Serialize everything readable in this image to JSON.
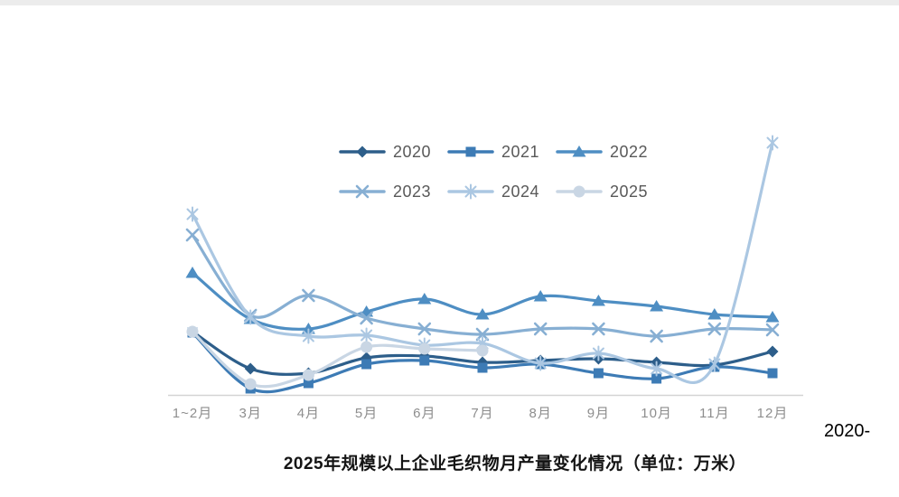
{
  "caption": {
    "line1_right": "2020-",
    "line2": "2025年规模以上企业毛织物月产量变化情况（单位：万米）"
  },
  "chart_data": {
    "type": "line",
    "title": "2020-2025年规模以上企业毛织物月产量变化情况（单位：万米）",
    "categories": [
      "1~2月",
      "3月",
      "4月",
      "5月",
      "6月",
      "7月",
      "8月",
      "9月",
      "10月",
      "11月",
      "12月"
    ],
    "series": [
      {
        "name": "2020",
        "marker": "diamond",
        "color": "#2d5e8a",
        "values": [
          70,
          29,
          24,
          41,
          43,
          36,
          38,
          40,
          36,
          33,
          48
        ]
      },
      {
        "name": "2021",
        "marker": "square",
        "color": "#3d7bb5",
        "values": [
          69,
          7,
          13,
          34,
          38,
          30,
          34,
          24,
          18,
          31,
          24
        ]
      },
      {
        "name": "2022",
        "marker": "triangle",
        "color": "#4e8ec3",
        "values": [
          135,
          84,
          73,
          92,
          106,
          89,
          109,
          104,
          98,
          89,
          86
        ]
      },
      {
        "name": "2023",
        "marker": "x",
        "color": "#87afd3",
        "values": [
          177,
          88,
          110,
          85,
          73,
          67,
          73,
          73,
          65,
          73,
          72
        ]
      },
      {
        "name": "2024",
        "marker": "asterisk",
        "color": "#abc7e2",
        "values": [
          200,
          86,
          65,
          66,
          55,
          57,
          35,
          46,
          29,
          34,
          279
        ]
      },
      {
        "name": "2025",
        "marker": "circle",
        "color": "#c9d6e4",
        "values": [
          70,
          12,
          22,
          53,
          51,
          49,
          null,
          null,
          null,
          null,
          null
        ]
      }
    ],
    "xlabel": "",
    "ylabel": "",
    "ylim": [
      0,
      300
    ],
    "y_axis_note": "no y-axis ticks or gridlines visible in source; values are estimated relative heights above the baseline",
    "grid": false,
    "legend_position": "top-center",
    "line_style": "smooth"
  },
  "colors": {
    "axis_line": "#d4d4d4",
    "tick_text": "#8e8e8e",
    "legend_text": "#595959",
    "caption_text": "#141414",
    "top_bar": "#ececec"
  }
}
